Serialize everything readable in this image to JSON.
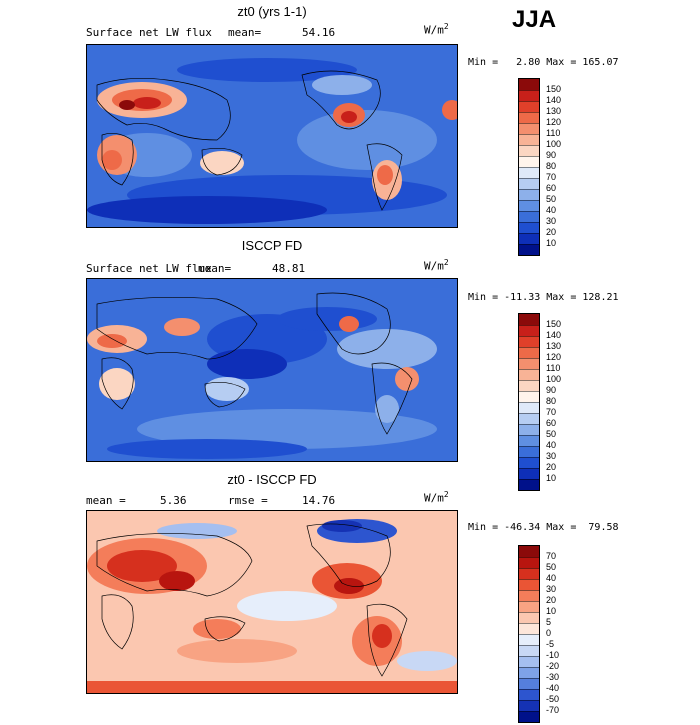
{
  "season": "JJA",
  "panels": [
    {
      "id": "model",
      "title": "zt0 (yrs 1-1)",
      "left_label": "Surface net LW flux",
      "stat_label": "mean=",
      "stat_value": "54.16",
      "units_base": "W/m",
      "units_exp": "2",
      "minmax": "Min =   2.80 Max = 165.07",
      "colorbar_labels": [
        "150",
        "140",
        "130",
        "120",
        "110",
        "100",
        "90",
        "80",
        "70",
        "60",
        "50",
        "40",
        "30",
        "20",
        "10"
      ],
      "colorbar_colors": [
        "#8b0a0a",
        "#c8201a",
        "#e0402a",
        "#ee6a48",
        "#f48f6e",
        "#f8b396",
        "#fbd6c2",
        "#fff4ec",
        "#dfe9f9",
        "#b6cdf2",
        "#8db0ea",
        "#5f8fe2",
        "#3a6ed9",
        "#1f4fd0",
        "#0e2fb8",
        "#00118a"
      ],
      "map_bg": "#3a6ed9"
    },
    {
      "id": "obs",
      "title": "ISCCP FD",
      "left_label": "Surface net LW flux",
      "stat_label": "mean=",
      "stat_value": "48.81",
      "units_base": "W/m",
      "units_exp": "2",
      "minmax": "Min = -11.33 Max = 128.21",
      "colorbar_labels": [
        "150",
        "140",
        "130",
        "120",
        "110",
        "100",
        "90",
        "80",
        "70",
        "60",
        "50",
        "40",
        "30",
        "20",
        "10"
      ],
      "colorbar_colors": [
        "#8b0a0a",
        "#c8201a",
        "#e0402a",
        "#ee6a48",
        "#f48f6e",
        "#f8b396",
        "#fbd6c2",
        "#fff4ec",
        "#dfe9f9",
        "#b6cdf2",
        "#8db0ea",
        "#5f8fe2",
        "#3a6ed9",
        "#1f4fd0",
        "#0e2fb8",
        "#00118a"
      ],
      "map_bg": "#3a6ed9"
    },
    {
      "id": "diff",
      "title": "zt0 - ISCCP FD",
      "left_label": "mean =",
      "stat_label": "rmse =",
      "left_value": "5.36",
      "stat_value": "14.76",
      "units_base": "W/m",
      "units_exp": "2",
      "minmax": "Min = -46.34 Max =  79.58",
      "colorbar_labels": [
        "70",
        "50",
        "40",
        "30",
        "20",
        "10",
        "5",
        "0",
        "-5",
        "-10",
        "-20",
        "-30",
        "-40",
        "-50",
        "-70"
      ],
      "colorbar_colors": [
        "#8b0a0a",
        "#b8150f",
        "#d6301e",
        "#ea5535",
        "#f47d5a",
        "#f8a383",
        "#fbc7b0",
        "#fde6da",
        "#e6eefb",
        "#c8d8f5",
        "#a5bff0",
        "#7ea2e8",
        "#557fdd",
        "#2d55cf",
        "#1532b4",
        "#00118a"
      ],
      "map_bg": "#fbc7b0"
    }
  ]
}
